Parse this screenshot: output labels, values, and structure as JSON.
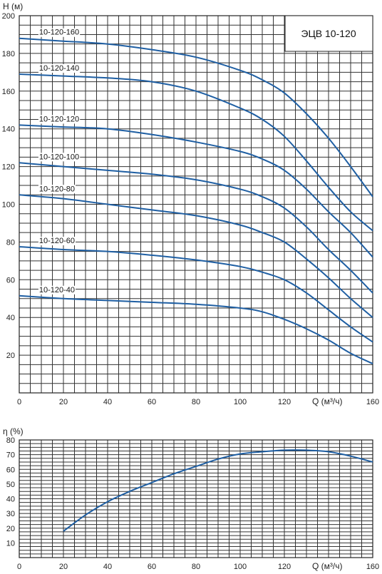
{
  "chart_data": [
    {
      "type": "line",
      "title": "ЭЦВ 10-120",
      "ylabel": "H (м)",
      "xlabel": "Q (м³/ч)",
      "xlim": [
        0,
        160
      ],
      "ylim": [
        0,
        200
      ],
      "x_ticks": [
        "0",
        "20",
        "40",
        "60",
        "80",
        "100",
        "120",
        "160"
      ],
      "y_ticks": [
        "20",
        "40",
        "60",
        "80",
        "100",
        "120",
        "140",
        "160",
        "180",
        "200"
      ],
      "series": [
        {
          "name": "10-120-160",
          "x": [
            0,
            20,
            40,
            60,
            80,
            100,
            110,
            120,
            130,
            140,
            150,
            160
          ],
          "y": [
            188,
            186.5,
            185,
            182,
            178,
            171,
            166,
            159,
            148,
            135,
            120,
            104
          ]
        },
        {
          "name": "10-120-140",
          "x": [
            0,
            20,
            40,
            60,
            80,
            100,
            110,
            120,
            130,
            140,
            150,
            160
          ],
          "y": [
            169,
            168,
            167,
            165,
            160,
            151,
            145,
            136,
            123,
            109,
            96,
            86
          ]
        },
        {
          "name": "10-120-120",
          "x": [
            0,
            20,
            40,
            60,
            80,
            100,
            110,
            120,
            130,
            140,
            150,
            160
          ],
          "y": [
            142,
            141,
            140,
            137,
            133,
            128,
            124,
            118,
            108,
            96,
            85,
            72
          ]
        },
        {
          "name": "10-120-100",
          "x": [
            0,
            20,
            40,
            60,
            80,
            100,
            110,
            120,
            130,
            140,
            150,
            160
          ],
          "y": [
            122,
            120,
            118,
            116,
            113,
            108,
            104,
            98,
            88,
            76,
            65,
            53
          ]
        },
        {
          "name": "10-120-80",
          "x": [
            0,
            20,
            40,
            60,
            80,
            100,
            110,
            120,
            130,
            140,
            150,
            160
          ],
          "y": [
            105,
            103,
            100,
            97,
            94,
            89,
            85,
            80,
            71,
            61,
            50,
            40
          ]
        },
        {
          "name": "10-120-60",
          "x": [
            0,
            20,
            40,
            60,
            80,
            100,
            110,
            120,
            130,
            140,
            150,
            160
          ],
          "y": [
            77.5,
            76,
            75,
            73,
            70.5,
            67,
            64,
            60,
            53,
            44,
            35,
            27
          ]
        },
        {
          "name": "10-120-40",
          "x": [
            0,
            20,
            40,
            60,
            80,
            100,
            110,
            120,
            130,
            140,
            150,
            160
          ],
          "y": [
            51.5,
            50,
            49,
            48,
            47,
            45,
            43,
            39,
            34,
            28,
            21,
            15.5
          ]
        }
      ]
    },
    {
      "type": "line",
      "ylabel": "η (%)",
      "xlabel": "Q (м³/ч)",
      "xlim": [
        0,
        160
      ],
      "ylim": [
        0,
        80
      ],
      "x_ticks": [
        "0",
        "20",
        "40",
        "60",
        "80",
        "100",
        "120",
        "160"
      ],
      "y_ticks": [
        "10",
        "20",
        "30",
        "40",
        "50",
        "60",
        "70",
        "80"
      ],
      "series": [
        {
          "x": [
            20,
            30,
            40,
            50,
            60,
            70,
            80,
            90,
            100,
            110,
            120,
            130,
            140,
            150,
            160
          ],
          "y": [
            18,
            29,
            38,
            45,
            51,
            57,
            62,
            67,
            70.5,
            72,
            73,
            73,
            72,
            69,
            65
          ]
        }
      ]
    }
  ]
}
